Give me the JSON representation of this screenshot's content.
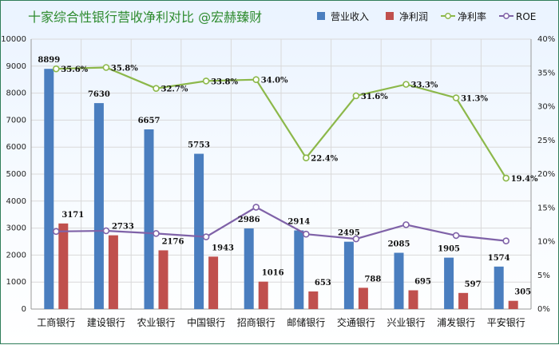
{
  "chart_data": {
    "type": "bar",
    "title": "十家综合性银行营收净利对比 @宏赫臻财",
    "categories": [
      "工商银行",
      "建设银行",
      "农业银行",
      "中国银行",
      "招商银行",
      "邮储银行",
      "交通银行",
      "兴业银行",
      "浦发银行",
      "平安银行"
    ],
    "series": [
      {
        "name": "营业收入",
        "type": "bar",
        "axis": "left",
        "color": "#4a7ebf",
        "values": [
          8899,
          7630,
          6657,
          5753,
          2986,
          2914,
          2495,
          2085,
          1905,
          1574
        ],
        "labels": [
          "8899",
          "7630",
          "6657",
          "5753",
          "2986",
          "2914",
          "2495",
          "2085",
          "1905",
          "1574"
        ]
      },
      {
        "name": "净利润",
        "type": "bar",
        "axis": "left",
        "color": "#c0504d",
        "values": [
          3171,
          2733,
          2176,
          1943,
          1016,
          653,
          788,
          695,
          597,
          305
        ],
        "labels": [
          "3171",
          "2733",
          "2176",
          "1943",
          "1016",
          "653",
          "788",
          "695",
          "597",
          "305"
        ]
      },
      {
        "name": "净利率",
        "type": "line",
        "axis": "right",
        "color": "#8cb84a",
        "values": [
          35.6,
          35.8,
          32.7,
          33.8,
          34.0,
          22.4,
          31.6,
          33.3,
          31.3,
          19.4
        ],
        "labels": [
          "35.6%",
          "35.8%",
          "32.7%",
          "33.8%",
          "34.0%",
          "22.4%",
          "31.6%",
          "33.3%",
          "31.3%",
          "19.4%"
        ]
      },
      {
        "name": "ROE",
        "type": "line",
        "axis": "right",
        "color": "#7f62a8",
        "values": [
          11.5,
          11.6,
          11.2,
          10.7,
          15.1,
          11.1,
          10.4,
          12.5,
          10.9,
          10.1
        ]
      }
    ],
    "y_left": {
      "min": 0,
      "max": 10000,
      "step": 1000,
      "ticks": [
        "0",
        "1000",
        "2000",
        "3000",
        "4000",
        "5000",
        "6000",
        "7000",
        "8000",
        "9000",
        "10000"
      ]
    },
    "y_right": {
      "min": 0,
      "max": 40,
      "step": 5,
      "ticks": [
        "0%",
        "5%",
        "10%",
        "15%",
        "20%",
        "25%",
        "30%",
        "35%",
        "40%"
      ]
    },
    "grid": true,
    "legend": "top-right"
  }
}
